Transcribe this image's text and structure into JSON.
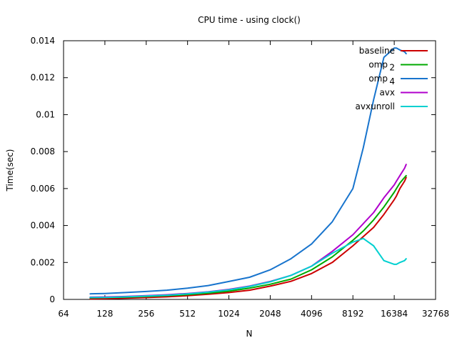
{
  "chart_data": {
    "type": "line",
    "title": "CPU time - using clock()",
    "xlabel": "N",
    "ylabel": "Time(sec)",
    "x_scale": "log2",
    "xlim": [
      64,
      32768
    ],
    "ylim": [
      0,
      0.014
    ],
    "x_ticks": [
      64,
      128,
      256,
      512,
      1024,
      2048,
      4096,
      8192,
      16384,
      32768
    ],
    "y_ticks": [
      "0",
      "0.002",
      "0.004",
      "0.006",
      "0.008",
      "0.01",
      "0.012",
      "0.014"
    ],
    "y_tick_values": [
      0,
      0.002,
      0.004,
      0.006,
      0.008,
      0.01,
      0.012,
      0.014
    ],
    "grid": false,
    "legend_position": "top-right",
    "x": [
      100,
      128,
      181,
      256,
      362,
      512,
      724,
      1024,
      1448,
      2048,
      2896,
      4096,
      5793,
      8192,
      9742,
      11585,
      13777,
      16384,
      17000,
      18000,
      19484,
      20000
    ],
    "series": [
      {
        "name": "baseline",
        "color": "#cc0000",
        "values": [
          3e-05,
          4e-05,
          7e-05,
          0.0001,
          0.00014,
          0.0002,
          0.00028,
          0.00037,
          0.0005,
          0.00072,
          0.00098,
          0.0014,
          0.002,
          0.0029,
          0.0034,
          0.0039,
          0.0046,
          0.0054,
          0.0056,
          0.006,
          0.0064,
          0.0066
        ]
      },
      {
        "name": "omp",
        "name_subscript": "2",
        "color": "#00aa00",
        "values": [
          9e-05,
          0.0001,
          0.00012,
          0.00016,
          0.0002,
          0.00026,
          0.00034,
          0.00045,
          0.00061,
          0.00082,
          0.0011,
          0.0016,
          0.0023,
          0.0032,
          0.0037,
          0.0043,
          0.005,
          0.0058,
          0.006,
          0.0063,
          0.0066,
          0.0067
        ]
      },
      {
        "name": "omp",
        "name_subscript": "4",
        "color": "#1874cd",
        "values": [
          0.0003,
          0.00032,
          0.00037,
          0.00043,
          0.0005,
          0.00061,
          0.00075,
          0.00097,
          0.0012,
          0.0016,
          0.0022,
          0.003,
          0.0042,
          0.006,
          0.0082,
          0.0108,
          0.0131,
          0.0136,
          0.0136,
          0.0135,
          0.0134,
          0.0133
        ]
      },
      {
        "name": "avx",
        "color": "#b000cc",
        "values": [
          0.00012,
          0.00013,
          0.00016,
          0.0002,
          0.00025,
          0.00032,
          0.00041,
          0.00054,
          0.00072,
          0.00097,
          0.0013,
          0.0018,
          0.0026,
          0.0035,
          0.0041,
          0.0047,
          0.0055,
          0.0062,
          0.0064,
          0.0067,
          0.0071,
          0.0073
        ]
      },
      {
        "name": "avxunroll",
        "color": "#00d0d0",
        "values": [
          0.0001,
          0.00011,
          0.00014,
          0.00018,
          0.00023,
          0.0003,
          0.0004,
          0.00052,
          0.0007,
          0.00095,
          0.0013,
          0.0018,
          0.0025,
          0.0031,
          0.0033,
          0.0029,
          0.0021,
          0.0019,
          0.0019,
          0.002,
          0.0021,
          0.0022
        ]
      }
    ]
  }
}
